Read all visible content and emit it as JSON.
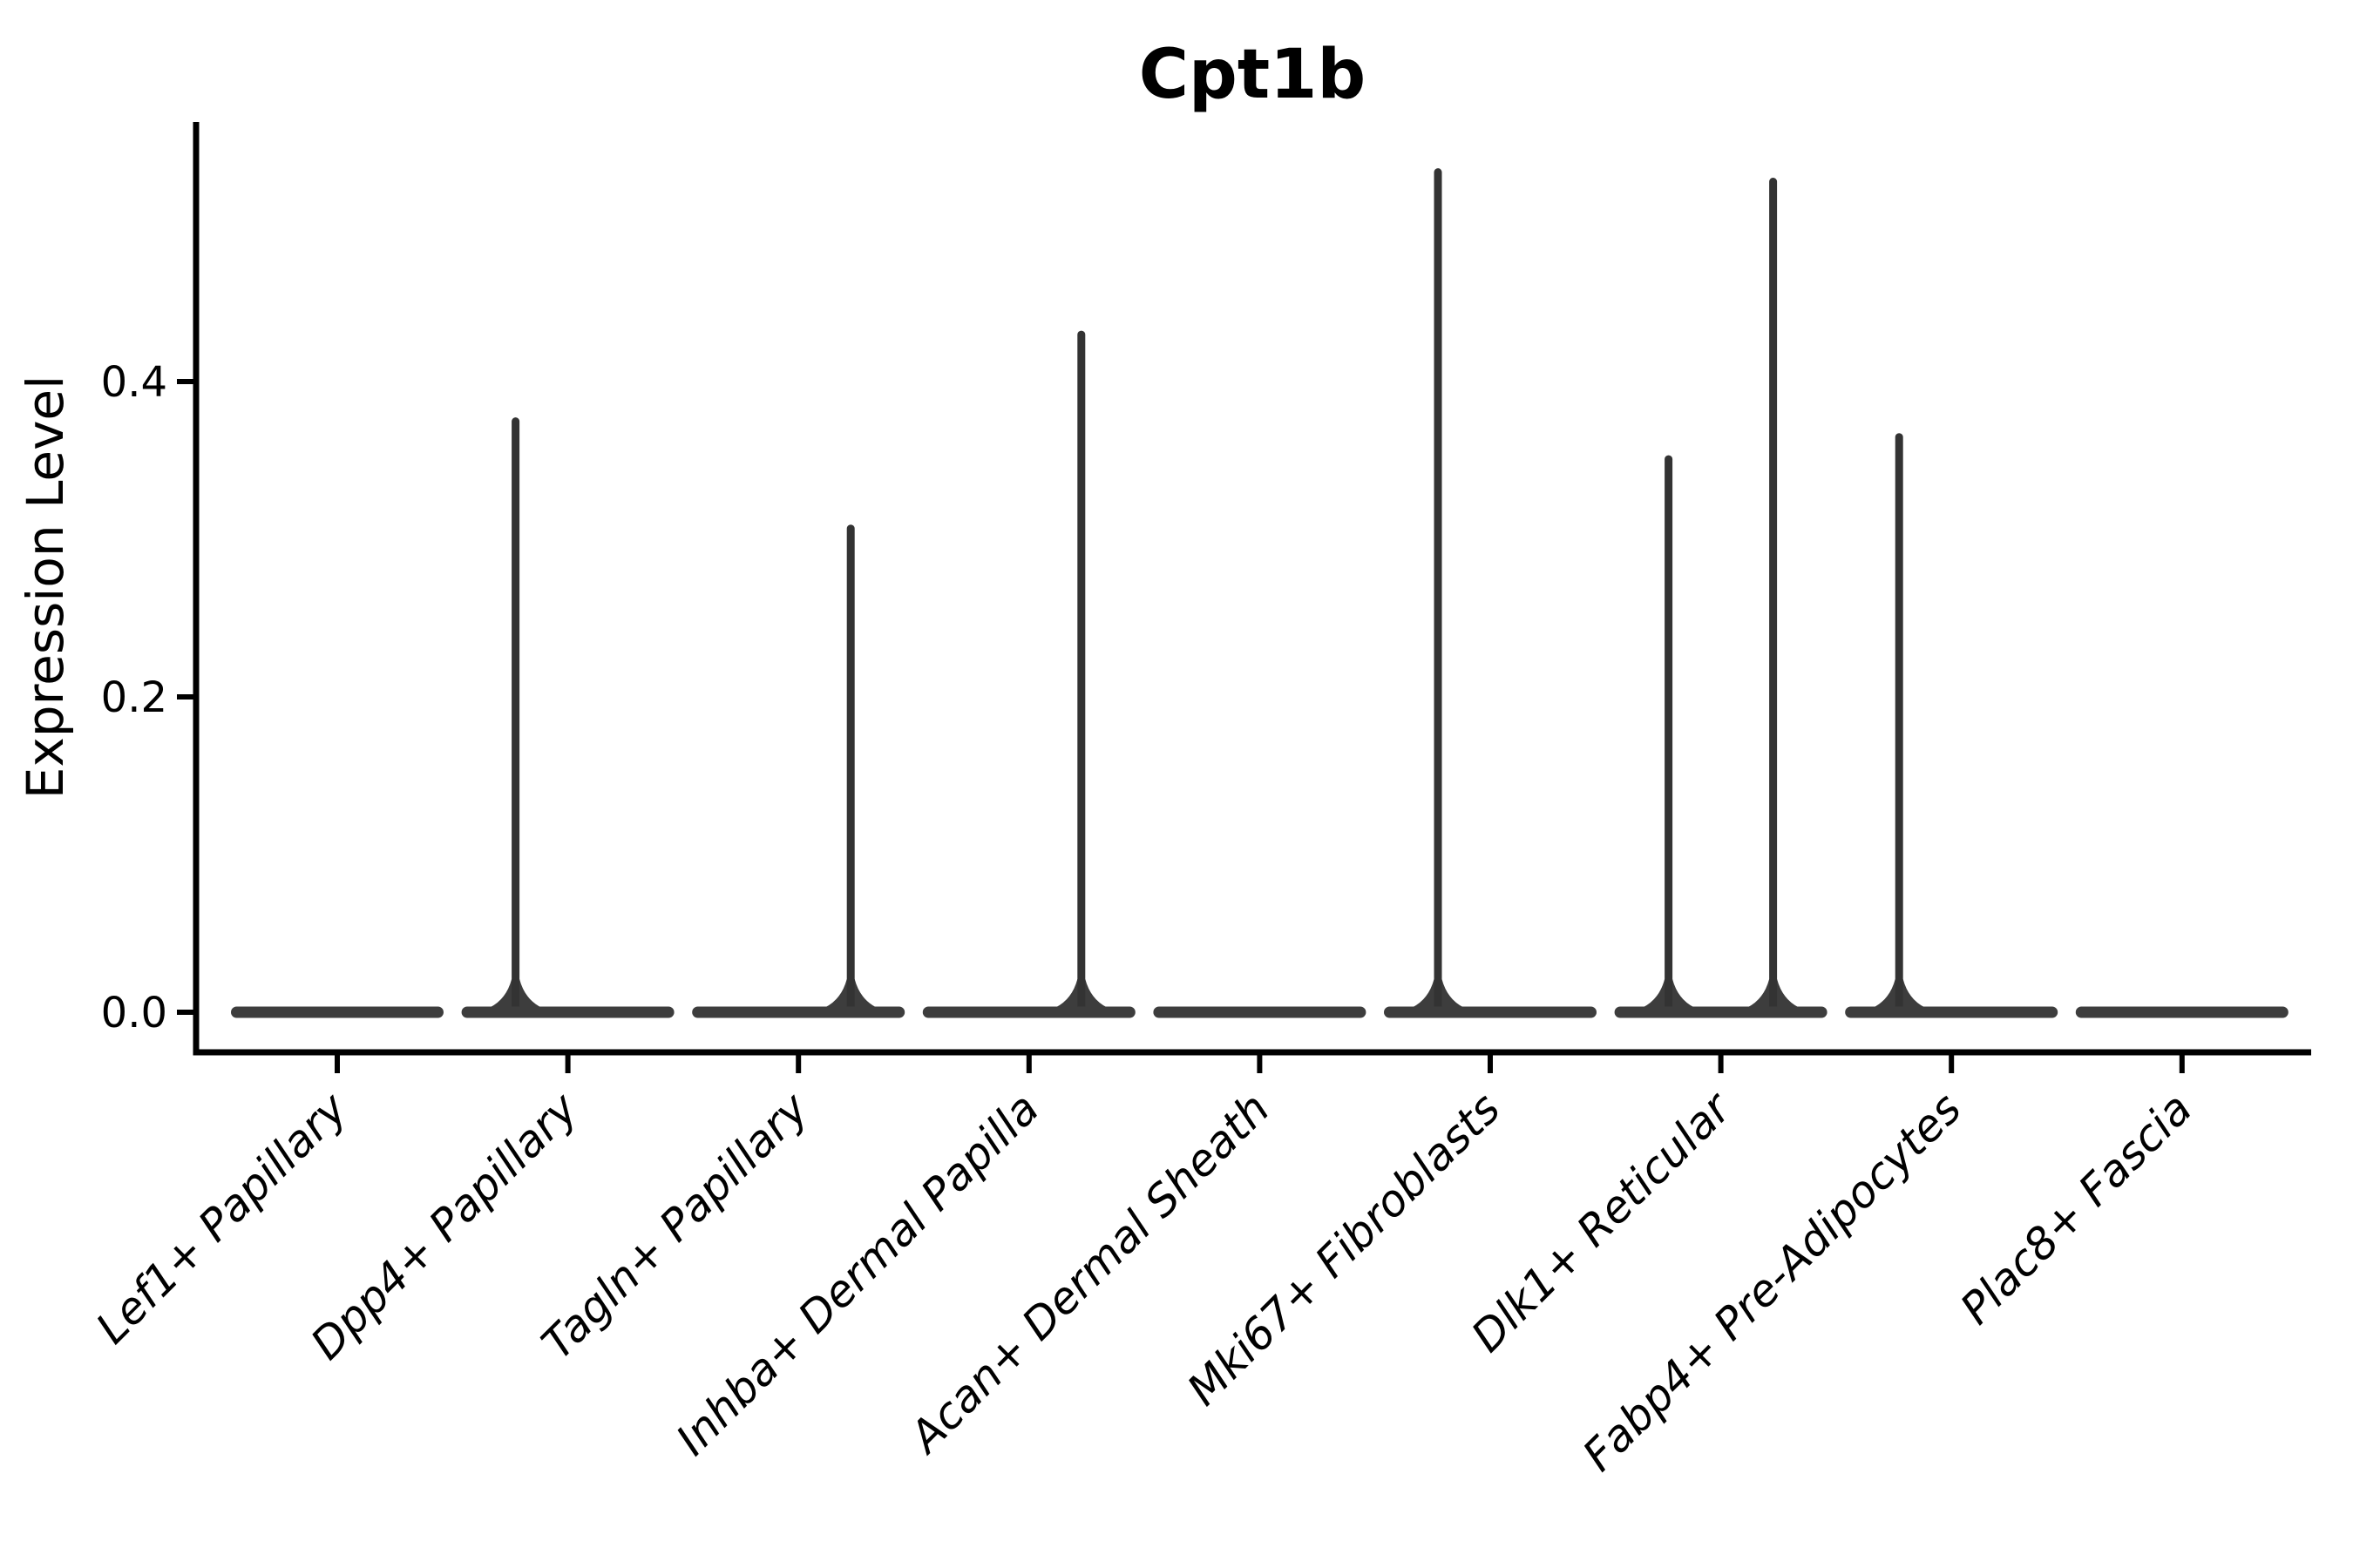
{
  "figure": {
    "title": "Cpt1b"
  },
  "axes": {
    "ylabel": "Expression Level",
    "ytick_labels": [
      "0.0",
      "0.2",
      "0.4"
    ]
  },
  "chart_data": {
    "type": "violin",
    "title": "Cpt1b",
    "xlabel": "",
    "ylabel": "Expression Level",
    "ylim": [
      0,
      0.565
    ],
    "yticks": [
      0.0,
      0.2,
      0.4
    ],
    "ytick_labels": [
      "0.0",
      "0.2",
      "0.4"
    ],
    "grid": false,
    "legend_position": "none",
    "categories": [
      "Lef1+ Papillary",
      "Dpp4+ Papillary",
      "Tagln+ Papillary",
      "Inhba+ Dermal Papilla",
      "Acan+ Dermal Sheath",
      "Mki67+ Fibroblasts",
      "Dlk1+ Reticular",
      "Fabp4+ Pre-Adipocytes",
      "Plac8+ Fascia"
    ],
    "description": "Violin plot of Cpt1b expression per fibroblast cluster. Nearly all density sits in a wide flat bar at expression 0; thin vertical spikes mark the sparse tail of expressing cells, rising to the maximum expression value. Spikes sit on the left and/or right half of each category slot.",
    "violins": [
      {
        "category": "Lef1+ Papillary",
        "zero_bar": true,
        "spikes": []
      },
      {
        "category": "Dpp4+ Papillary",
        "zero_bar": true,
        "spikes": [
          {
            "side": "left",
            "max": 0.377
          }
        ]
      },
      {
        "category": "Tagln+ Papillary",
        "zero_bar": true,
        "spikes": [
          {
            "side": "right",
            "max": 0.309
          }
        ]
      },
      {
        "category": "Inhba+ Dermal Papilla",
        "zero_bar": true,
        "spikes": [
          {
            "side": "right",
            "max": 0.432
          }
        ]
      },
      {
        "category": "Acan+ Dermal Sheath",
        "zero_bar": true,
        "spikes": []
      },
      {
        "category": "Mki67+ Fibroblasts",
        "zero_bar": true,
        "spikes": [
          {
            "side": "left",
            "max": 0.535
          }
        ]
      },
      {
        "category": "Dlk1+ Reticular",
        "zero_bar": true,
        "spikes": [
          {
            "side": "left",
            "max": 0.353
          },
          {
            "side": "right",
            "max": 0.529
          }
        ]
      },
      {
        "category": "Fabp4+ Pre-Adipocytes",
        "zero_bar": true,
        "spikes": [
          {
            "side": "left",
            "max": 0.367
          }
        ]
      },
      {
        "category": "Plac8+ Fascia",
        "zero_bar": true,
        "spikes": []
      }
    ],
    "colors": {
      "violin_fill": "#3d3d3d",
      "spike_stroke": "#333333",
      "axis": "#000000",
      "text": "#000000",
      "background": "#ffffff"
    }
  }
}
